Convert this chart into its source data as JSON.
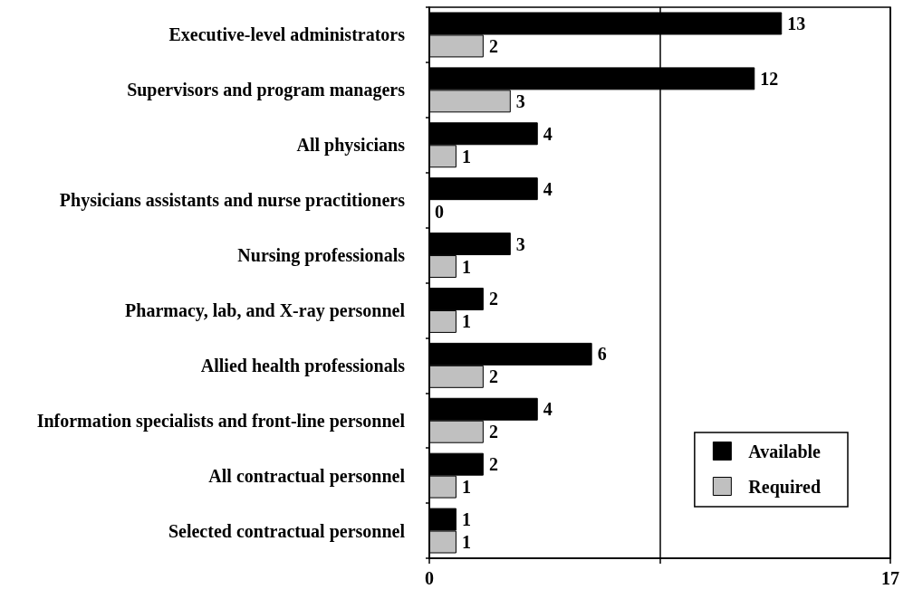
{
  "chart_data": {
    "type": "bar",
    "orientation": "horizontal",
    "categories": [
      "Executive-level administrators",
      "Supervisors and program managers",
      "All physicians",
      "Physicians assistants and nurse practitioners",
      "Nursing professionals",
      "Pharmacy, lab, and X-ray personnel",
      "Allied health professionals",
      "Information specialists and front-line personnel",
      "All contractual personnel",
      "Selected contractual personnel"
    ],
    "series": [
      {
        "name": "Available",
        "color": "#000000",
        "values": [
          13,
          12,
          4,
          4,
          3,
          2,
          6,
          4,
          2,
          1
        ]
      },
      {
        "name": "Required",
        "color": "#c0c0c0",
        "values": [
          2,
          3,
          1,
          0,
          1,
          1,
          2,
          2,
          1,
          1
        ]
      }
    ],
    "xlim": [
      0,
      17
    ],
    "xticks": [
      0,
      {
        "value": 8.5,
        "label": null
      },
      17
    ],
    "grid": "x",
    "legend": "bottom right",
    "data_labels": true
  }
}
